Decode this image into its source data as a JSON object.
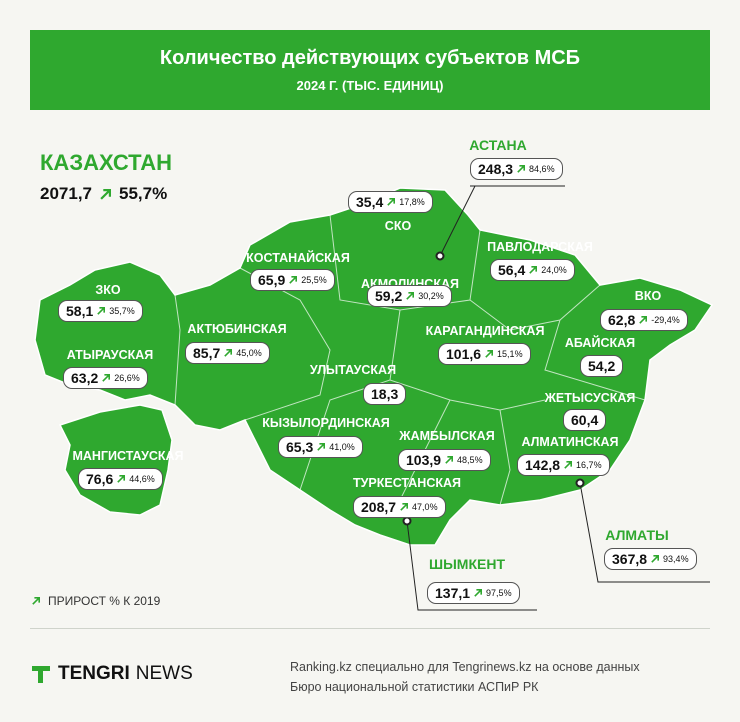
{
  "header": {
    "title": "Количество действующих субъектов МСБ",
    "subtitle": "2024 Г.  (ТЫС. ЕДИНИЦ)"
  },
  "total": {
    "name": "КАЗАХСТАН",
    "value": "2071,7",
    "growth": "55,7%"
  },
  "regions": [
    {
      "name": "ЗКО",
      "value": "58,1",
      "growth": "35,7%"
    },
    {
      "name": "АТЫРАУСКАЯ",
      "value": "63,2",
      "growth": "26,6%"
    },
    {
      "name": "МАНГИСТАУСКАЯ",
      "value": "76,6",
      "growth": "44,6%"
    },
    {
      "name": "АКТЮБИНСКАЯ",
      "value": "85,7",
      "growth": "45,0%"
    },
    {
      "name": "КОСТАНАЙСКАЯ",
      "value": "65,9",
      "growth": "25,5%"
    },
    {
      "name": "СКО",
      "value": "35,4",
      "growth": "17,8%"
    },
    {
      "name": "АКМОЛИНСКАЯ",
      "value": "59,2",
      "growth": "30,2%"
    },
    {
      "name": "АСТАНА",
      "value": "248,3",
      "growth": "84,6%"
    },
    {
      "name": "ПАВЛОДАРСКАЯ",
      "value": "56,4",
      "growth": "24,0%"
    },
    {
      "name": "ВКО",
      "value": "62,8",
      "growth": "-29,4%"
    },
    {
      "name": "АБАЙСКАЯ",
      "value": "54,2"
    },
    {
      "name": "КАРАГАНДИНСКАЯ",
      "value": "101,6",
      "growth": "15,1%"
    },
    {
      "name": "УЛЫТАУСКАЯ",
      "value": "18,3"
    },
    {
      "name": "КЫЗЫЛОРДИНСКАЯ",
      "value": "65,3",
      "growth": "41,0%"
    },
    {
      "name": "ЖЕТЫСУСКАЯ",
      "value": "60,4"
    },
    {
      "name": "ЖАМБЫЛСКАЯ",
      "value": "103,9",
      "growth": "48,5%"
    },
    {
      "name": "АЛМАТИНСКАЯ",
      "value": "142,8",
      "growth": "16,7%"
    },
    {
      "name": "ТУРКЕСТАНСКАЯ",
      "value": "208,7",
      "growth": "47,0%"
    },
    {
      "name": "ШЫМКЕНТ",
      "value": "137,1",
      "growth": "97,5%"
    },
    {
      "name": "АЛМАТЫ",
      "value": "367,8",
      "growth": "93,4%"
    }
  ],
  "legend": "ПРИРОСТ % К 2019",
  "footer": {
    "brand_bold": "TENGRI",
    "brand_light": "NEWS",
    "source_line1": "Ranking.kz специально для Tengrinews.kz на основе данных",
    "source_line2": "Бюро национальной статистики АСПиР РК"
  }
}
